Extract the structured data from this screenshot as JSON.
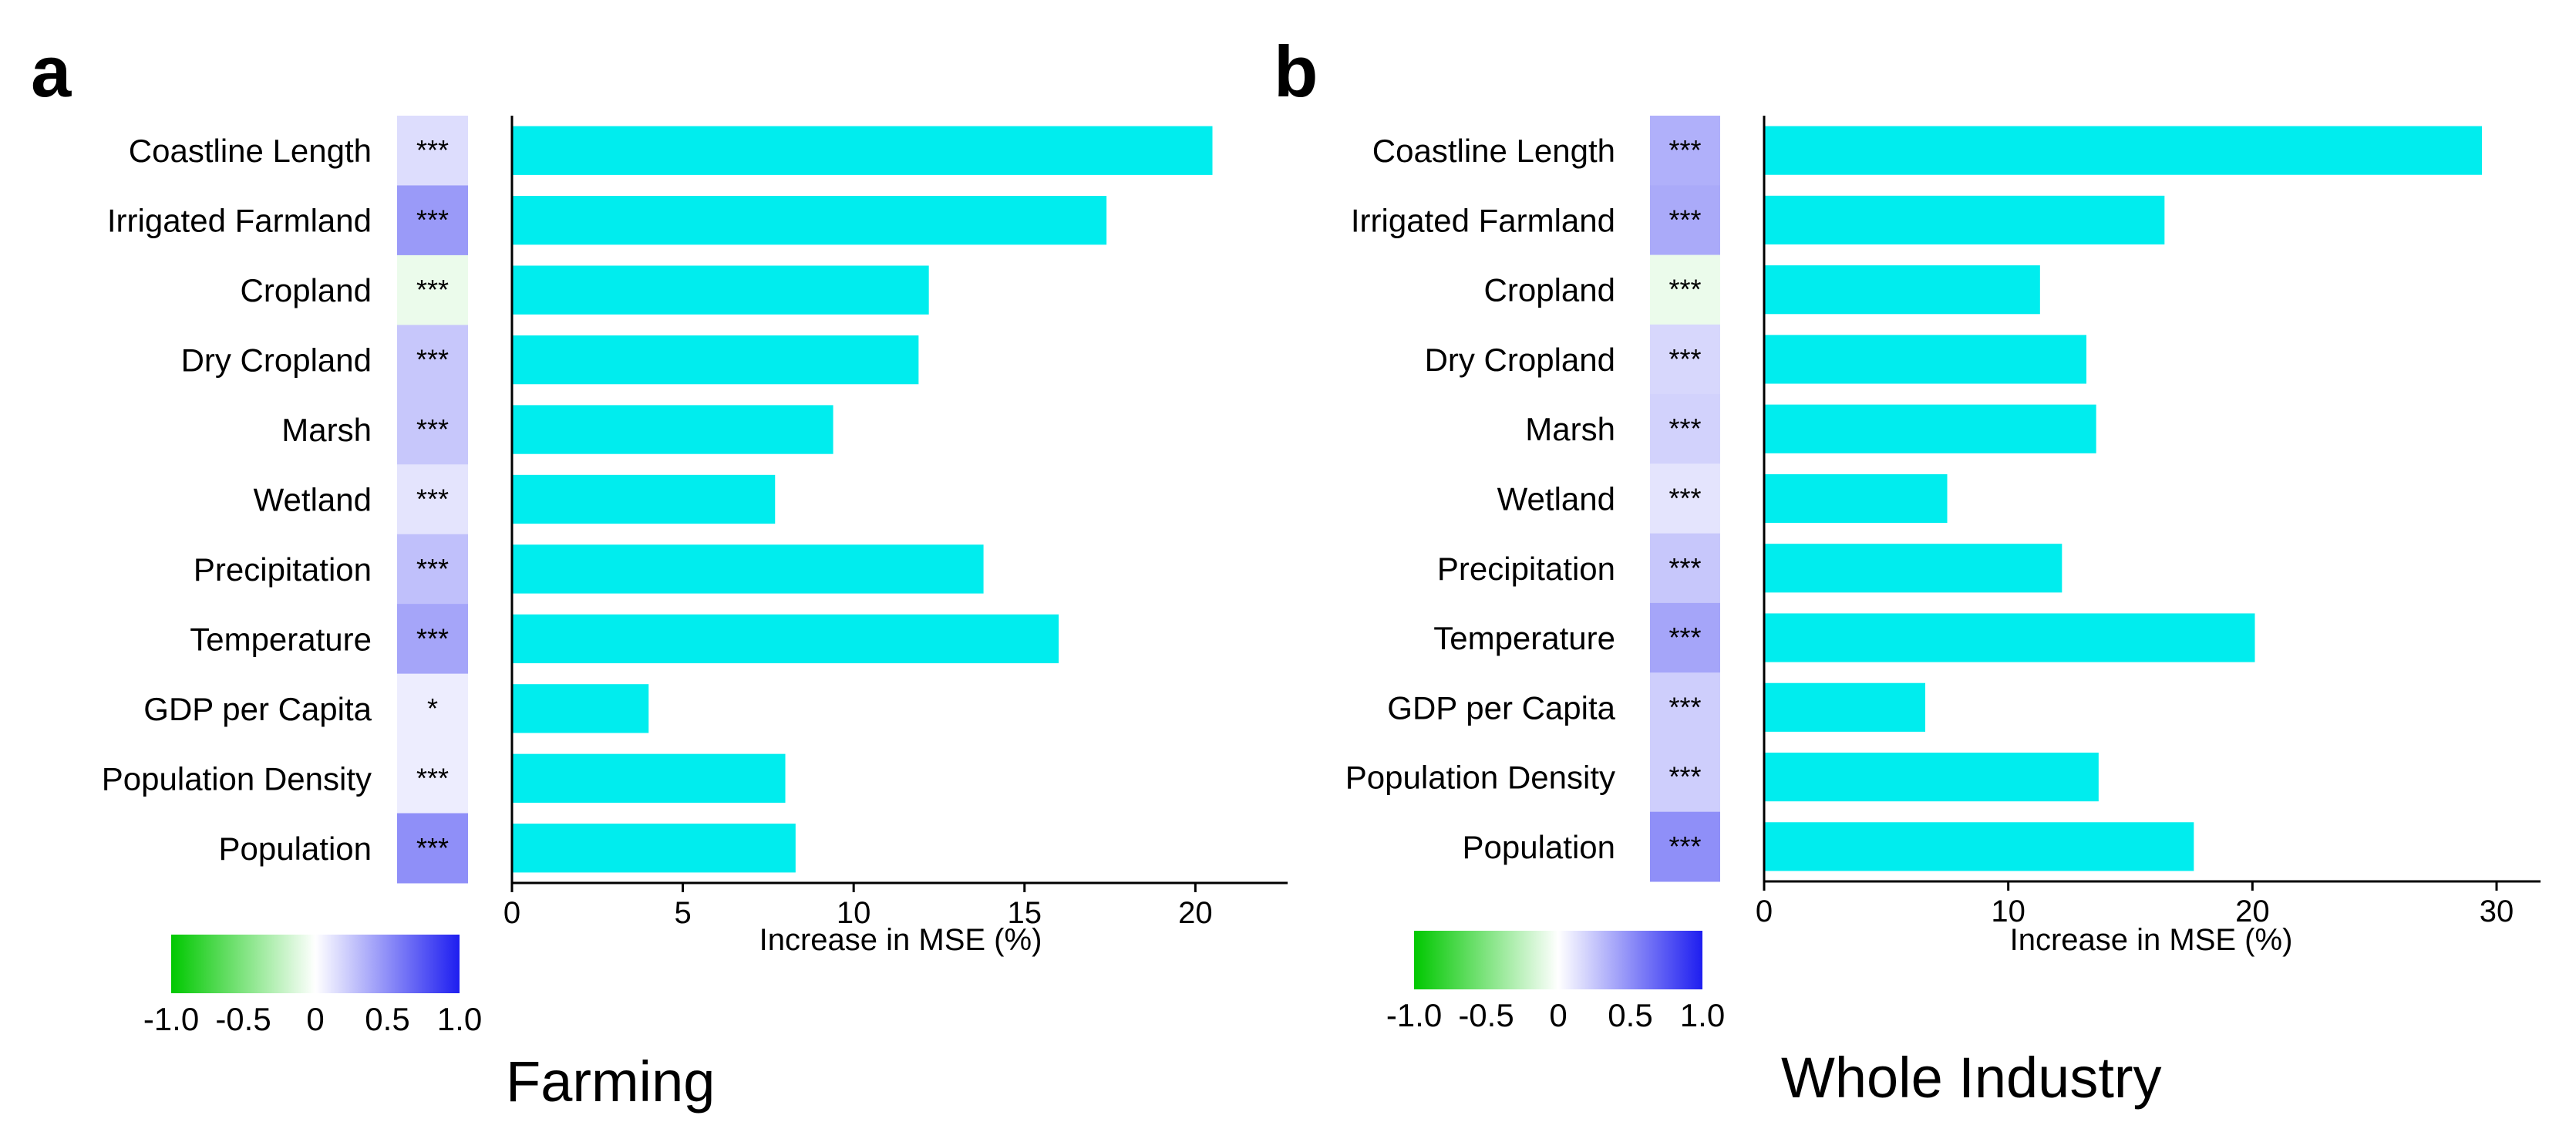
{
  "colors": {
    "bar": "#00EDEE",
    "neg": "#00C800",
    "zero": "#FFFFFF",
    "pos": "#1E1EF0"
  },
  "colorbar": {
    "ticks": [
      "-1.0",
      "-0.5",
      "0",
      "0.5",
      "1.0"
    ],
    "values": [
      -1.0,
      -0.5,
      0,
      0.5,
      1.0
    ],
    "range": [
      -1.0,
      1.0
    ]
  },
  "chart_data": [
    {
      "panel": "a",
      "type": "bar",
      "orientation": "horizontal",
      "title": "Farming",
      "xlabel": "Increase in MSE (%)",
      "xlim": [
        0,
        22
      ],
      "xticks": [
        0,
        5,
        10,
        15,
        20
      ],
      "categories": [
        "Coastline Length",
        "Irrigated Farmland",
        "Cropland",
        "Dry Cropland",
        "Marsh",
        "Wetland",
        "Precipitation",
        "Temperature",
        "GDP per Capita",
        "Population Density",
        "Population"
      ],
      "values": [
        20.5,
        17.4,
        12.2,
        11.9,
        9.4,
        7.7,
        13.8,
        16.0,
        4.0,
        8.0,
        8.3
      ],
      "correlation": [
        0.15,
        0.45,
        -0.08,
        0.25,
        0.25,
        0.12,
        0.28,
        0.4,
        0.08,
        0.08,
        0.5
      ],
      "significance": [
        "***",
        "***",
        "***",
        "***",
        "***",
        "***",
        "***",
        "***",
        "*",
        "***",
        "***"
      ]
    },
    {
      "panel": "b",
      "type": "bar",
      "orientation": "horizontal",
      "title": "Whole Industry",
      "xlabel": "Increase in MSE (%)",
      "xlim": [
        0,
        32
      ],
      "xticks": [
        0,
        10,
        20,
        30
      ],
      "categories": [
        "Coastline Length",
        "Irrigated Farmland",
        "Cropland",
        "Dry Cropland",
        "Marsh",
        "Wetland",
        "Precipitation",
        "Temperature",
        "GDP per Capita",
        "Population Density",
        "Population"
      ],
      "values": [
        29.4,
        16.4,
        11.3,
        13.2,
        13.6,
        7.5,
        12.2,
        20.1,
        6.6,
        13.7,
        17.6
      ],
      "correlation": [
        0.35,
        0.38,
        -0.08,
        0.18,
        0.2,
        0.12,
        0.25,
        0.4,
        0.22,
        0.22,
        0.5
      ],
      "significance": [
        "***",
        "***",
        "***",
        "***",
        "***",
        "***",
        "***",
        "***",
        "***",
        "***",
        "***"
      ]
    }
  ]
}
